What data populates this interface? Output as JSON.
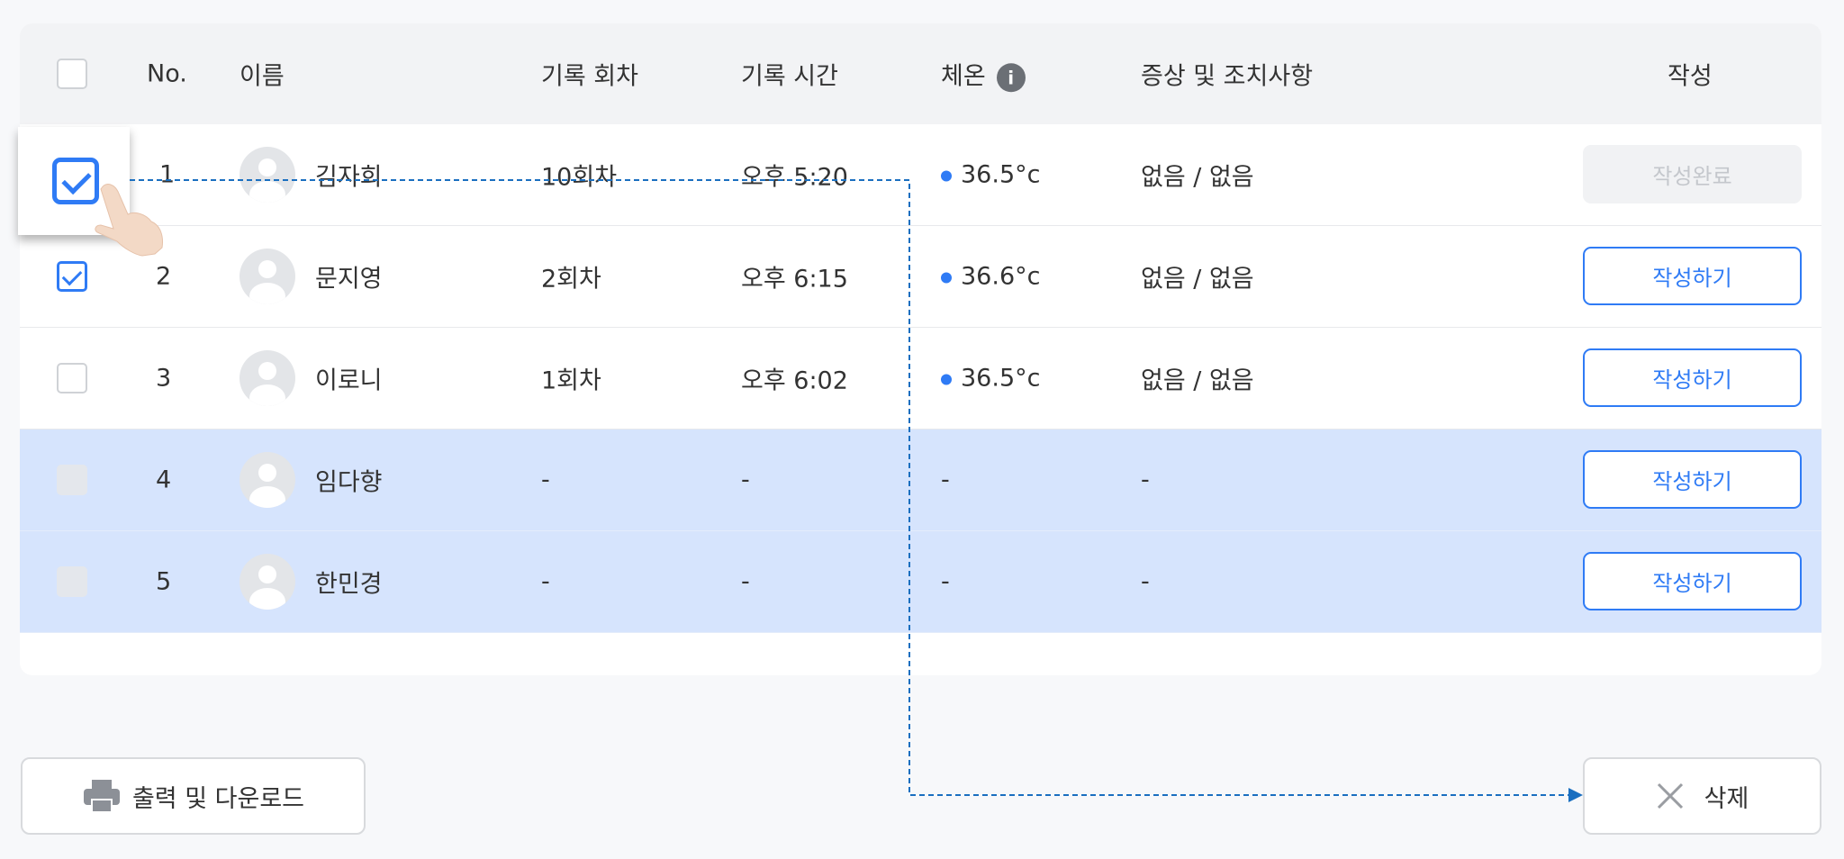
{
  "header": {
    "no": "No.",
    "name": "이름",
    "round": "기록 회차",
    "time": "기록 시간",
    "temp": "체온",
    "info_icon": "i",
    "symptom": "증상 및 조치사항",
    "write": "작성"
  },
  "rows": [
    {
      "checked": true,
      "no": "1",
      "name": "김자희",
      "round": "10회차",
      "time": "오후 5:20",
      "temp": "36.5°c",
      "symptom": "없음 / 없음",
      "action": "작성완료",
      "action_state": "disabled"
    },
    {
      "checked": true,
      "no": "2",
      "name": "문지영",
      "round": "2회차",
      "time": "오후 6:15",
      "temp": "36.6°c",
      "symptom": "없음 / 없음",
      "action": "작성하기"
    },
    {
      "checked": false,
      "no": "3",
      "name": "이로니",
      "round": "1회차",
      "time": "오후 6:02",
      "temp": "36.5°c",
      "symptom": "없음 / 없음",
      "action": "작성하기"
    },
    {
      "checked": false,
      "disabled": true,
      "highlighted": true,
      "no": "4",
      "name": "임다향",
      "round": "-",
      "time": "-",
      "temp": "-",
      "symptom": "-",
      "action": "작성하기"
    },
    {
      "checked": false,
      "disabled": true,
      "highlighted": true,
      "no": "5",
      "name": "한민경",
      "round": "-",
      "time": "-",
      "temp": "-",
      "symptom": "-",
      "action": "작성하기"
    }
  ],
  "footer": {
    "print_label": "출력 및 다운로드",
    "delete_label": "삭제"
  },
  "colors": {
    "accent": "#2f7bf5",
    "highlight_row": "#d6e4fd",
    "annotation": "#1a6fc0"
  }
}
